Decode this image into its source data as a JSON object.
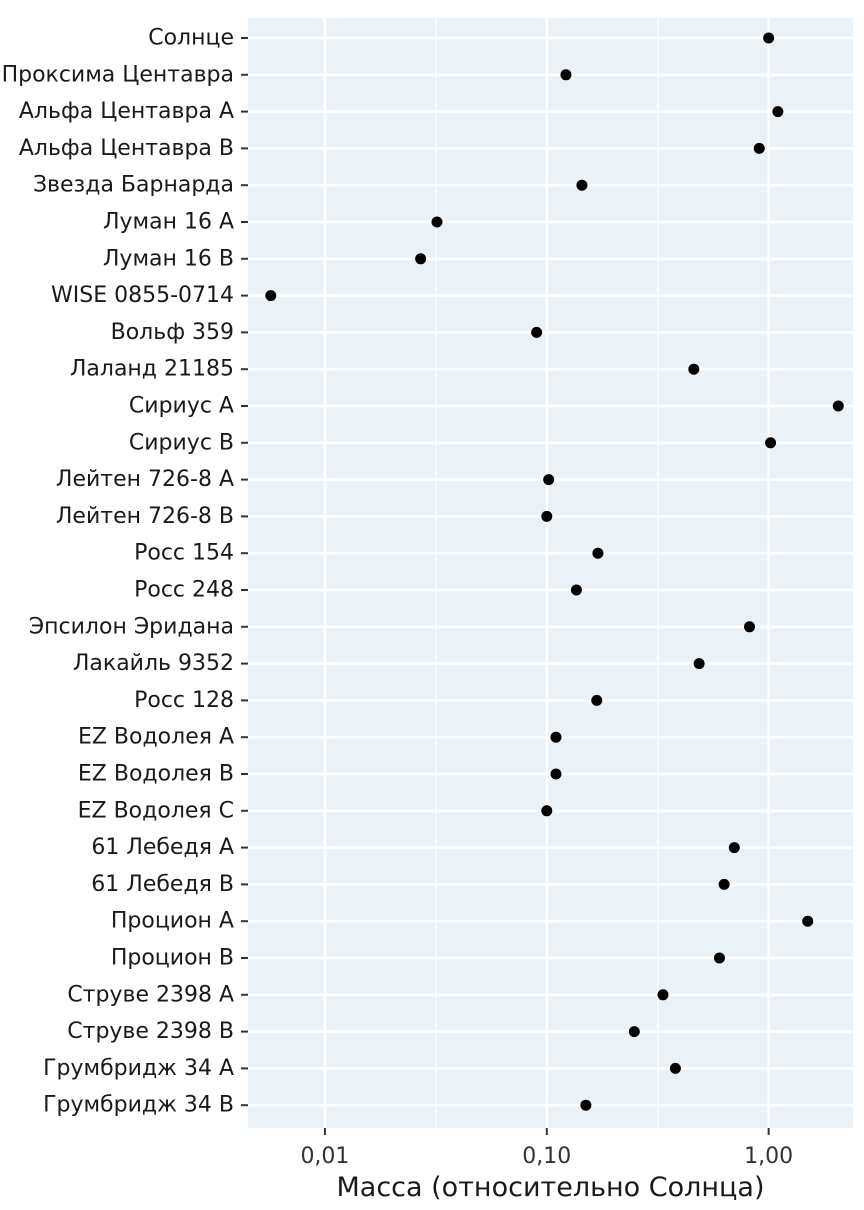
{
  "chart_data": {
    "type": "scatter",
    "xlabel": "Масса (относительно Солнца)",
    "xscale": "log",
    "xlim": [
      0.0045,
      2.4
    ],
    "xticks": [
      {
        "value": 0.01,
        "label": "0,01"
      },
      {
        "value": 0.1,
        "label": "0,10"
      },
      {
        "value": 1.0,
        "label": "1,00"
      }
    ],
    "grid": true,
    "colors": {
      "panel": "#eaf2f8",
      "grid": "#ffffff",
      "point": "#000000",
      "text": "#1a1a1a",
      "tick_text": "#333333"
    },
    "points": [
      {
        "label": "Солнце",
        "x": 1.0
      },
      {
        "label": "Проксима Центавра",
        "x": 0.122
      },
      {
        "label": "Альфа Центавра A",
        "x": 1.1
      },
      {
        "label": "Альфа Центавра B",
        "x": 0.907
      },
      {
        "label": "Звезда Барнарда",
        "x": 0.144
      },
      {
        "label": "Луман 16 A",
        "x": 0.032
      },
      {
        "label": "Луман 16 B",
        "x": 0.027
      },
      {
        "label": "WISE 0855-0714",
        "x": 0.0057
      },
      {
        "label": "Вольф 359",
        "x": 0.09
      },
      {
        "label": "Лаланд 21185",
        "x": 0.46
      },
      {
        "label": "Сириус A",
        "x": 2.06
      },
      {
        "label": "Сириус B",
        "x": 1.02
      },
      {
        "label": "Лейтен 726-8 A",
        "x": 0.102
      },
      {
        "label": "Лейтен 726-8 B",
        "x": 0.1
      },
      {
        "label": "Росс 154",
        "x": 0.17
      },
      {
        "label": "Росс 248",
        "x": 0.136
      },
      {
        "label": "Эпсилон Эридана",
        "x": 0.82
      },
      {
        "label": "Лакайль 9352",
        "x": 0.486
      },
      {
        "label": "Росс 128",
        "x": 0.168
      },
      {
        "label": "EZ Водолея A",
        "x": 0.11
      },
      {
        "label": "EZ Водолея B",
        "x": 0.11
      },
      {
        "label": "EZ Водолея C",
        "x": 0.1
      },
      {
        "label": "61 Лебедя A",
        "x": 0.7
      },
      {
        "label": "61 Лебедя B",
        "x": 0.63
      },
      {
        "label": "Процион A",
        "x": 1.5
      },
      {
        "label": "Процион B",
        "x": 0.6
      },
      {
        "label": "Струве 2398 A",
        "x": 0.334
      },
      {
        "label": "Струве 2398 B",
        "x": 0.248
      },
      {
        "label": "Грумбридж 34 A",
        "x": 0.38
      },
      {
        "label": "Грумбридж 34 B",
        "x": 0.15
      }
    ]
  }
}
